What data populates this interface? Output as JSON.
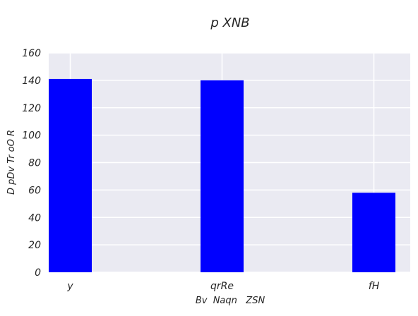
{
  "chart_data": {
    "type": "bar",
    "title": "p XNB",
    "xlabel": "Bv  Naqn   ZSN",
    "ylabel": "D pDv Tr oO R",
    "categories": [
      "y",
      "qrRe",
      "fH"
    ],
    "values": [
      141,
      140,
      58
    ],
    "ylim": [
      0,
      160
    ],
    "yticks": [
      "0",
      "20",
      "40",
      "60",
      "80",
      "100",
      "120",
      "140",
      "160"
    ],
    "grid": true,
    "legend": null,
    "colors": {
      "bar": "#0000ff",
      "plot_background": "#eaeaf2",
      "grid": "#ffffff"
    }
  }
}
